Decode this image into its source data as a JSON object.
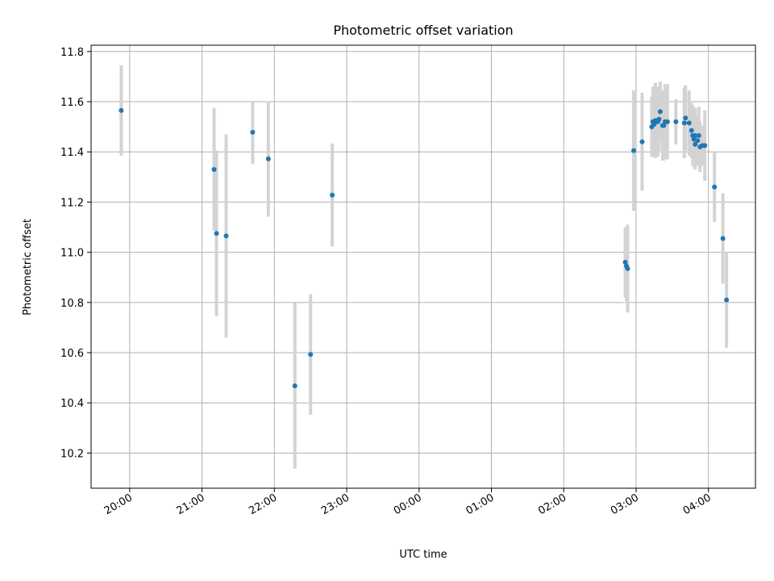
{
  "chart_data": {
    "type": "scatter",
    "title": "Photometric offset variation",
    "xlabel": "UTC time",
    "ylabel": "Photometric offset",
    "grid": true,
    "x_range": [
      "19:28",
      "04:39"
    ],
    "ylim": [
      10.06,
      11.825
    ],
    "x_ticks": [
      "20:00",
      "21:00",
      "22:00",
      "23:00",
      "00:00",
      "01:00",
      "02:00",
      "03:00",
      "04:00"
    ],
    "y_ticks": [
      "10.2",
      "10.4",
      "10.6",
      "10.8",
      "11.0",
      "11.2",
      "11.4",
      "11.6",
      "11.8"
    ],
    "colors": {
      "points": "#1f77b4",
      "error_bars": "#d3d3d3"
    },
    "series": [
      {
        "x": [
          "19:53",
          "21:10",
          "21:12",
          "21:20",
          "21:42",
          "21:55",
          "22:17",
          "22:30",
          "22:48",
          "02:51",
          "02:52",
          "02:53",
          "02:58",
          "03:05",
          "03:13",
          "03:14",
          "03:15",
          "03:16",
          "03:18",
          "03:19",
          "03:20",
          "03:22",
          "03:23",
          "03:24",
          "03:26",
          "03:33",
          "03:40",
          "03:41",
          "03:44",
          "03:46",
          "03:47",
          "03:48",
          "03:49",
          "03:49",
          "03:51",
          "03:52",
          "03:53",
          "03:55",
          "03:57",
          "04:05",
          "04:12",
          "04:15"
        ],
        "y": [
          11.565,
          11.33,
          11.075,
          11.065,
          11.478,
          11.372,
          10.468,
          10.593,
          11.228,
          10.96,
          10.945,
          10.935,
          11.405,
          11.44,
          11.5,
          11.52,
          11.51,
          11.525,
          11.52,
          11.53,
          11.56,
          11.505,
          11.505,
          11.52,
          11.52,
          11.52,
          11.515,
          11.535,
          11.515,
          11.485,
          11.465,
          11.45,
          11.43,
          11.465,
          11.445,
          11.465,
          11.42,
          11.425,
          11.425,
          11.26,
          11.055,
          10.81
        ],
        "yerr": [
          0.18,
          0.245,
          0.33,
          0.405,
          0.125,
          0.23,
          0.33,
          0.24,
          0.205,
          0.14,
          0.14,
          0.175,
          0.24,
          0.195,
          0.12,
          0.14,
          0.12,
          0.15,
          0.14,
          0.125,
          0.12,
          0.14,
          0.14,
          0.15,
          0.15,
          0.09,
          0.14,
          0.13,
          0.13,
          0.11,
          0.12,
          0.11,
          0.1,
          0.11,
          0.1,
          0.115,
          0.1,
          0.08,
          0.14,
          0.14,
          0.18,
          0.19
        ]
      }
    ]
  }
}
